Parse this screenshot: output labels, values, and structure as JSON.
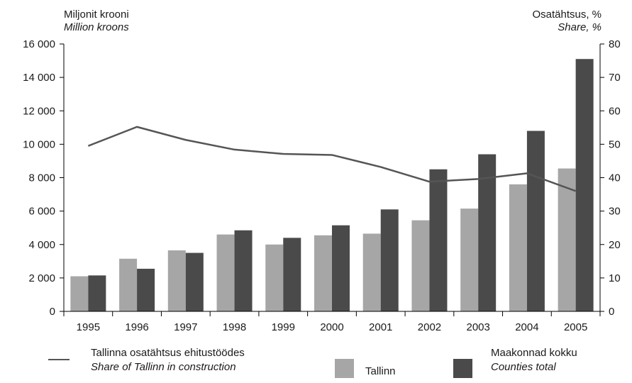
{
  "chart_data": {
    "type": "bar",
    "categories": [
      "1995",
      "1996",
      "1997",
      "1998",
      "1999",
      "2000",
      "2001",
      "2002",
      "2003",
      "2004",
      "2005"
    ],
    "series": [
      {
        "name": "Tallinn",
        "type": "bar",
        "axis": "left",
        "color": "#a6a6a6",
        "values": [
          2100,
          3150,
          3650,
          4600,
          4000,
          4550,
          4650,
          5450,
          6150,
          7600,
          8550
        ]
      },
      {
        "name": "Maakonnad kokku",
        "name_en": "Counties total",
        "type": "bar",
        "axis": "left",
        "color": "#4a4a4a",
        "values": [
          2150,
          2550,
          3500,
          4850,
          4400,
          5150,
          6100,
          8500,
          9400,
          10800,
          15100
        ]
      },
      {
        "name": "Tallinna osatähtsus ehitustöödes",
        "name_en": "Share of Tallinn in construction",
        "type": "line",
        "axis": "right",
        "color": "#555555",
        "values": [
          49.5,
          55.2,
          51.3,
          48.4,
          47.1,
          46.8,
          43.2,
          38.8,
          39.6,
          41.3,
          36.0
        ]
      }
    ],
    "y_left": {
      "label": "Miljonit krooni",
      "label_en": "Million kroons",
      "range": [
        0,
        16000
      ],
      "ticks": [
        0,
        2000,
        4000,
        6000,
        8000,
        10000,
        12000,
        14000,
        16000
      ],
      "tick_labels": [
        "0",
        "2 000",
        "4 000",
        "6 000",
        "8 000",
        "10 000",
        "12 000",
        "14 000",
        "16 000"
      ]
    },
    "y_right": {
      "label": "Osatähtsus, %",
      "label_en": "Share, %",
      "range": [
        0,
        80
      ],
      "ticks": [
        0,
        10,
        20,
        30,
        40,
        50,
        60,
        70,
        80
      ],
      "tick_labels": [
        "0",
        "10",
        "20",
        "30",
        "40",
        "50",
        "60",
        "70",
        "80"
      ]
    },
    "grid": false,
    "legend": {
      "position": "bottom",
      "line": {
        "label": "Tallinna osatähtsus ehitustöödes",
        "label_en": "Share of Tallinn in construction"
      },
      "tallinn": {
        "label": "Tallinn"
      },
      "counties": {
        "label": "Maakonnad kokku",
        "label_en": "Counties total"
      }
    }
  }
}
